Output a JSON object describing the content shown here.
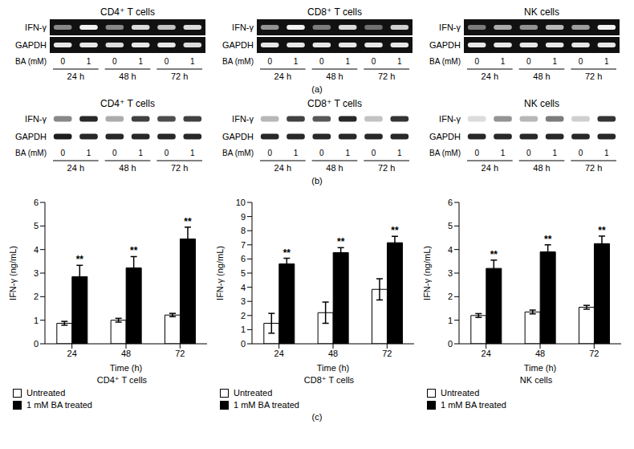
{
  "chart_data": [
    {
      "type": "gel",
      "panel": "(a)",
      "title": "CD4⁺ T cells",
      "lanes": {
        "label": "BA (mM)",
        "doses": [
          0,
          1,
          0,
          1,
          0,
          1
        ],
        "groups": [
          "24 h",
          "48 h",
          "72 h"
        ]
      },
      "series": [
        {
          "name": "IFN-γ",
          "values": [
            0.5,
            0.95,
            0.5,
            0.85,
            0.75,
            0.85
          ]
        },
        {
          "name": "GAPDH",
          "values": [
            0.9,
            0.9,
            0.85,
            0.9,
            0.9,
            0.85
          ]
        }
      ]
    },
    {
      "type": "gel",
      "panel": "(a)",
      "title": "CD8⁺ T cells",
      "lanes": {
        "label": "BA (mM)",
        "doses": [
          0,
          1,
          0,
          1,
          0,
          1
        ],
        "groups": [
          "24 h",
          "48 h",
          "72 h"
        ]
      },
      "series": [
        {
          "name": "IFN-γ",
          "values": [
            0.55,
            0.95,
            0.45,
            0.85,
            0.4,
            0.8
          ]
        },
        {
          "name": "GAPDH",
          "values": [
            0.9,
            0.9,
            0.9,
            0.9,
            0.9,
            0.9
          ]
        }
      ]
    },
    {
      "type": "gel",
      "panel": "(a)",
      "title": "NK cells",
      "lanes": {
        "label": "BA (mM)",
        "doses": [
          0,
          1,
          0,
          1,
          0,
          1
        ],
        "groups": [
          "24 h",
          "48 h",
          "72 h"
        ]
      },
      "series": [
        {
          "name": "IFN-γ",
          "values": [
            0.45,
            0.65,
            0.55,
            0.7,
            0.6,
            0.95
          ]
        },
        {
          "name": "GAPDH",
          "values": [
            0.9,
            0.9,
            0.9,
            0.9,
            0.9,
            0.9
          ]
        }
      ]
    },
    {
      "type": "blot",
      "panel": "(b)",
      "title": "CD4⁺ T cells",
      "lanes": {
        "label": "BA (mM)",
        "doses": [
          0,
          1,
          0,
          1,
          0,
          1
        ],
        "groups": [
          "24 h",
          "48 h",
          "72 h"
        ]
      },
      "series": [
        {
          "name": "IFN-γ",
          "values": [
            0.5,
            0.9,
            0.35,
            0.8,
            0.75,
            0.8
          ]
        },
        {
          "name": "GAPDH",
          "values": [
            0.95,
            0.9,
            0.9,
            0.9,
            0.9,
            0.9
          ]
        }
      ]
    },
    {
      "type": "blot",
      "panel": "(b)",
      "title": "CD8⁺ T cells",
      "lanes": {
        "label": "BA (mM)",
        "doses": [
          0,
          1,
          0,
          1,
          0,
          1
        ],
        "groups": [
          "24 h",
          "48 h",
          "72 h"
        ]
      },
      "series": [
        {
          "name": "IFN-γ",
          "values": [
            0.3,
            0.8,
            0.7,
            0.9,
            0.25,
            0.85
          ]
        },
        {
          "name": "GAPDH",
          "values": [
            0.9,
            0.9,
            0.9,
            0.9,
            0.9,
            0.9
          ]
        }
      ]
    },
    {
      "type": "blot",
      "panel": "(b)",
      "title": "NK cells",
      "lanes": {
        "label": "BA (mM)",
        "doses": [
          0,
          1,
          0,
          1,
          0,
          1
        ],
        "groups": [
          "24 h",
          "48 h",
          "72 h"
        ]
      },
      "series": [
        {
          "name": "IFN-γ",
          "values": [
            0.15,
            0.45,
            0.3,
            0.55,
            0.2,
            0.85
          ]
        },
        {
          "name": "GAPDH",
          "values": [
            0.9,
            0.9,
            0.9,
            0.9,
            0.9,
            0.9
          ]
        }
      ]
    },
    {
      "type": "bar",
      "panel": "(c)",
      "title": "CD4⁺ T cells",
      "x_label": "Time (h)",
      "y_label": "IFN-γ (ng/mL)",
      "categories": [
        "24",
        "48",
        "72"
      ],
      "ylim": [
        0,
        6
      ],
      "yticks": [
        0,
        1,
        2,
        3,
        4,
        5,
        6
      ],
      "grid": false,
      "legend": "bottom-left",
      "series": [
        {
          "name": "Untreated",
          "color": "#ffffff",
          "values": [
            0.87,
            1.0,
            1.22
          ],
          "errors": [
            0.08,
            0.08,
            0.07
          ]
        },
        {
          "name": "1 mM BA treated",
          "color": "#000000",
          "values": [
            2.85,
            3.22,
            4.45
          ],
          "errors": [
            0.48,
            0.48,
            0.5
          ],
          "annotations": [
            "**",
            "**",
            "**"
          ]
        }
      ]
    },
    {
      "type": "bar",
      "panel": "(c)",
      "title": "CD8⁺ T cells",
      "x_label": "Time (h)",
      "y_label": "IFN-γ (ng/mL)",
      "categories": [
        "24",
        "48",
        "72"
      ],
      "ylim": [
        0,
        10
      ],
      "yticks": [
        0,
        1,
        2,
        3,
        4,
        5,
        6,
        7,
        8,
        9,
        10
      ],
      "grid": false,
      "legend": "bottom-left",
      "series": [
        {
          "name": "Untreated",
          "color": "#ffffff",
          "values": [
            1.45,
            2.2,
            3.85
          ],
          "errors": [
            0.7,
            0.75,
            0.75
          ]
        },
        {
          "name": "1 mM BA treated",
          "color": "#000000",
          "values": [
            5.65,
            6.45,
            7.15
          ],
          "errors": [
            0.4,
            0.35,
            0.45
          ],
          "annotations": [
            "**",
            "**",
            "**"
          ]
        }
      ]
    },
    {
      "type": "bar",
      "panel": "(c)",
      "title": "NK cells",
      "x_label": "Time (h)",
      "y_label": "IFN-γ (ng/mL)",
      "categories": [
        "24",
        "48",
        "72"
      ],
      "ylim": [
        0,
        6
      ],
      "yticks": [
        0,
        1,
        2,
        3,
        4,
        5,
        6
      ],
      "grid": false,
      "legend": "bottom-left",
      "series": [
        {
          "name": "Untreated",
          "color": "#ffffff",
          "values": [
            1.2,
            1.35,
            1.55
          ],
          "errors": [
            0.08,
            0.08,
            0.08
          ]
        },
        {
          "name": "1 mM BA treated",
          "color": "#000000",
          "values": [
            3.2,
            3.9,
            4.25
          ],
          "errors": [
            0.35,
            0.3,
            0.32
          ],
          "annotations": [
            "**",
            "**",
            "**"
          ]
        }
      ]
    }
  ]
}
